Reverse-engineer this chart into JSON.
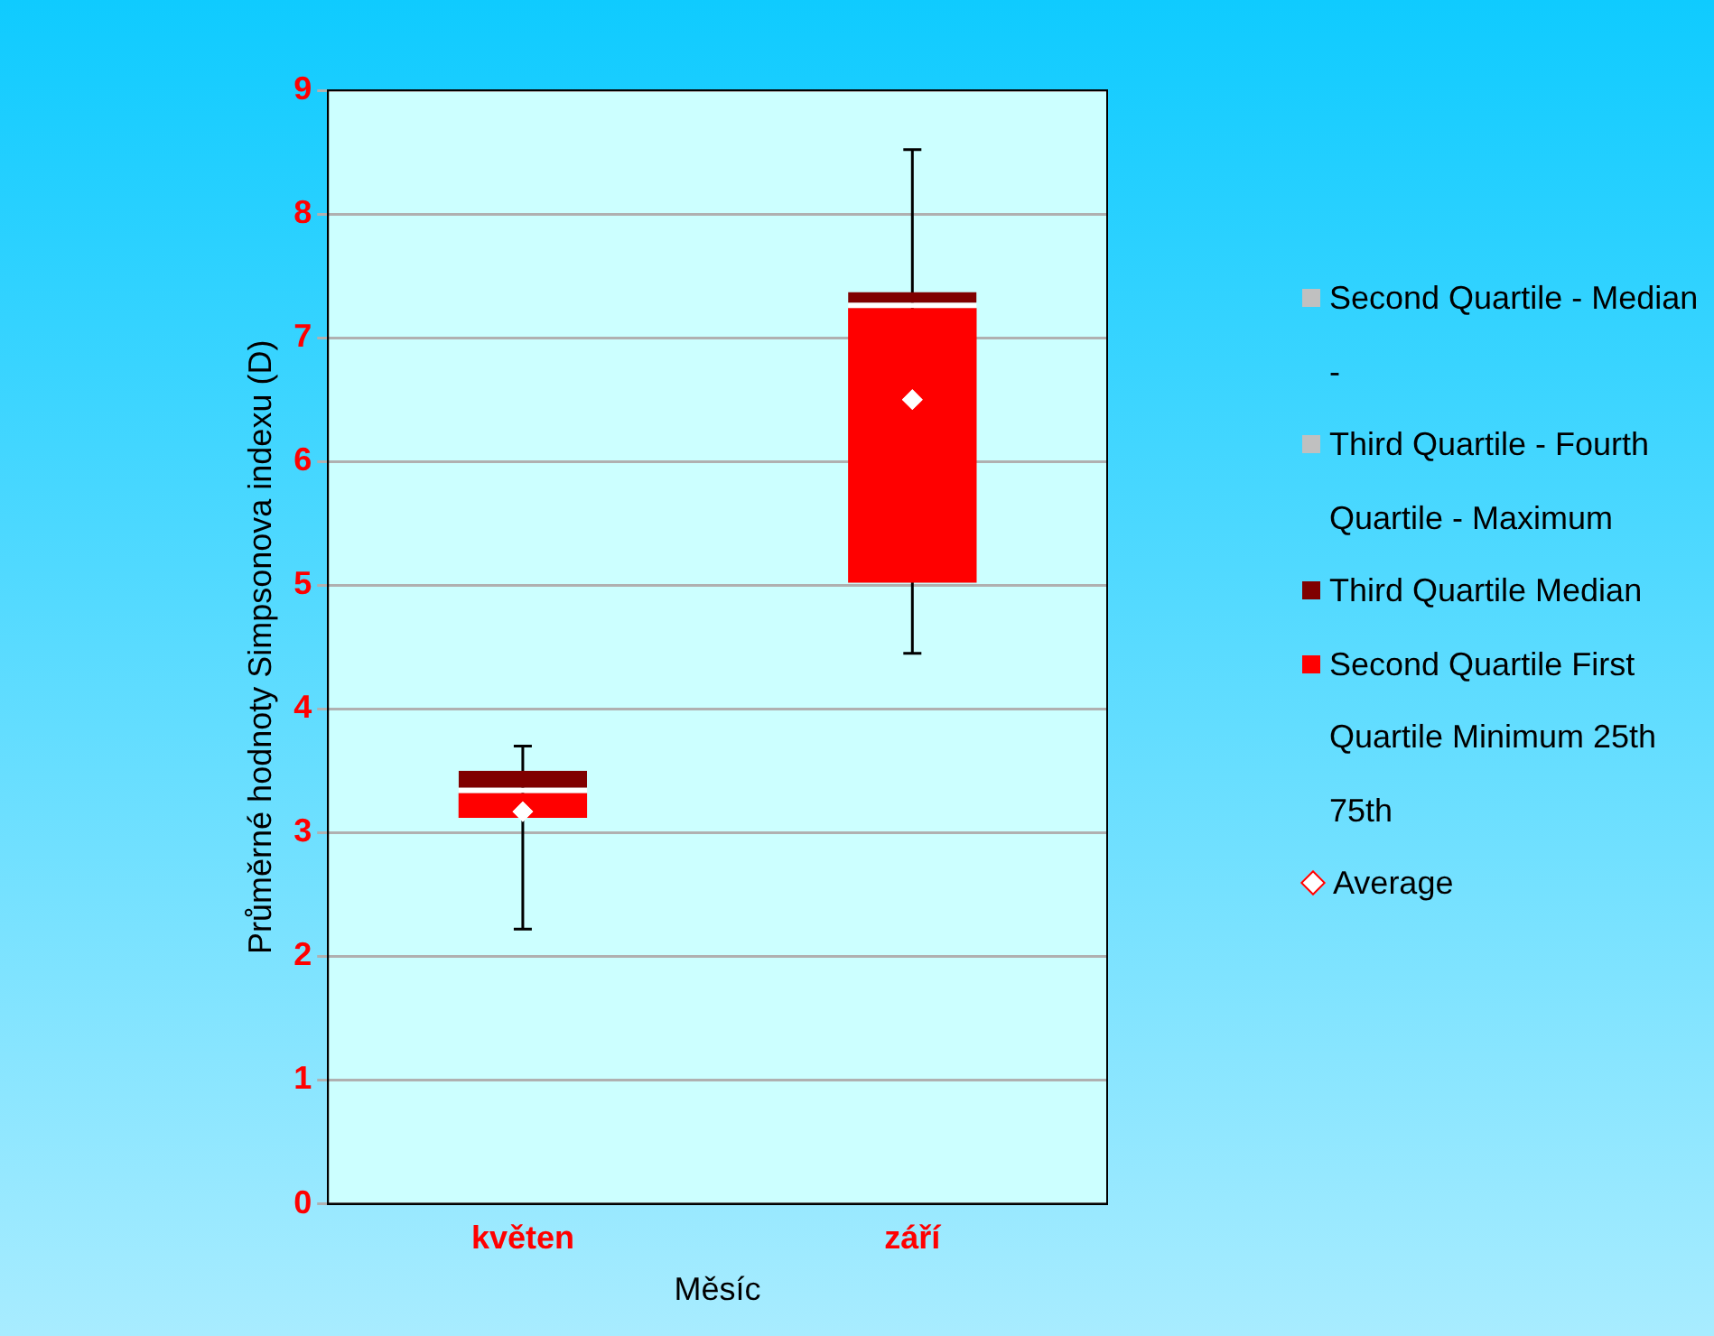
{
  "chart_data": {
    "type": "bar",
    "xlabel": "Měsíc",
    "ylabel": "Průměrné hodnoty Simpsonova indexu (D)",
    "categories": [
      "květen",
      "září"
    ],
    "ylim": [
      0,
      9
    ],
    "yticks": [
      0,
      1,
      2,
      3,
      4,
      5,
      6,
      7,
      8,
      9
    ],
    "grid": "y",
    "legend": "right",
    "series": [
      {
        "name": "Second Quartile - Median -",
        "color": "#c0c0c0",
        "values": [
          null,
          null
        ]
      },
      {
        "name": "Third Quartile - Fourth Quartile - Maximum",
        "color": "#c0c0c0",
        "values": [
          null,
          null
        ]
      },
      {
        "name": "Third Quartile Median",
        "color": "#800000",
        "base": [
          3.32,
          7.24
        ],
        "values": [
          0.18,
          0.13
        ]
      },
      {
        "name": "Second Quartile First Quartile Minimum 25th 75th",
        "color": "#ff0000",
        "base": [
          3.12,
          5.02
        ],
        "values": [
          0.2,
          2.22
        ],
        "errors": [
          [
            2.22,
            3.7
          ],
          [
            4.45,
            8.52
          ]
        ]
      },
      {
        "name": "Average",
        "type": "scatter",
        "color": "#ffffff",
        "marker": "diamond",
        "values": [
          3.17,
          6.5
        ]
      }
    ]
  }
}
